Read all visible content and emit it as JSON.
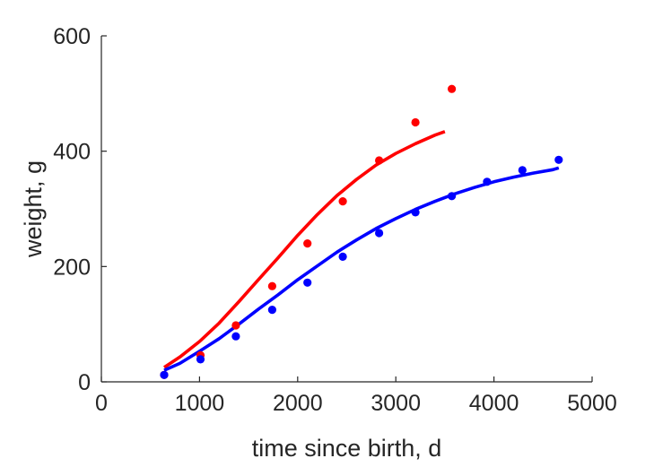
{
  "chart_data": {
    "type": "scatter",
    "xlabel": "time since birth, d",
    "ylabel": "weight, g",
    "xlim": [
      0,
      5000
    ],
    "ylim": [
      0,
      600
    ],
    "xticks": [
      "0",
      "1000",
      "2000",
      "3000",
      "4000",
      "5000"
    ],
    "yticks": [
      "0",
      "200",
      "400",
      "600"
    ],
    "grid": false,
    "series": [
      {
        "kind": "points",
        "color": "#ff0000",
        "x": [
          640,
          1010,
          1370,
          1740,
          2100,
          2460,
          2830,
          3200,
          3570
        ],
        "y": [
          12,
          46,
          98,
          166,
          240,
          313,
          384,
          450,
          508
        ]
      },
      {
        "kind": "points",
        "color": "#0000ff",
        "x": [
          640,
          1010,
          1370,
          1740,
          2100,
          2460,
          2830,
          3200,
          3570,
          3930,
          4290,
          4660
        ],
        "y": [
          12,
          39,
          79,
          125,
          172,
          217,
          258,
          294,
          322,
          347,
          367,
          385
        ]
      },
      {
        "kind": "line",
        "color": "#ff0000",
        "x": [
          640,
          800,
          1000,
          1200,
          1400,
          1600,
          1800,
          2000,
          2200,
          2400,
          2600,
          2800,
          3000,
          3200,
          3400,
          3500
        ],
        "y": [
          25,
          43,
          70,
          102,
          139,
          177,
          215,
          254,
          290,
          323,
          351,
          376,
          396,
          413,
          428,
          434
        ]
      },
      {
        "kind": "line",
        "color": "#0000ff",
        "x": [
          640,
          800,
          1000,
          1200,
          1400,
          1600,
          1800,
          2000,
          2200,
          2400,
          2600,
          2800,
          3000,
          3200,
          3400,
          3600,
          3800,
          4000,
          4200,
          4400,
          4600,
          4660
        ],
        "y": [
          20,
          32,
          53,
          75,
          100,
          126,
          151,
          177,
          201,
          225,
          246,
          266,
          283,
          299,
          313,
          326,
          337,
          347,
          355,
          362,
          368,
          371
        ]
      }
    ]
  }
}
